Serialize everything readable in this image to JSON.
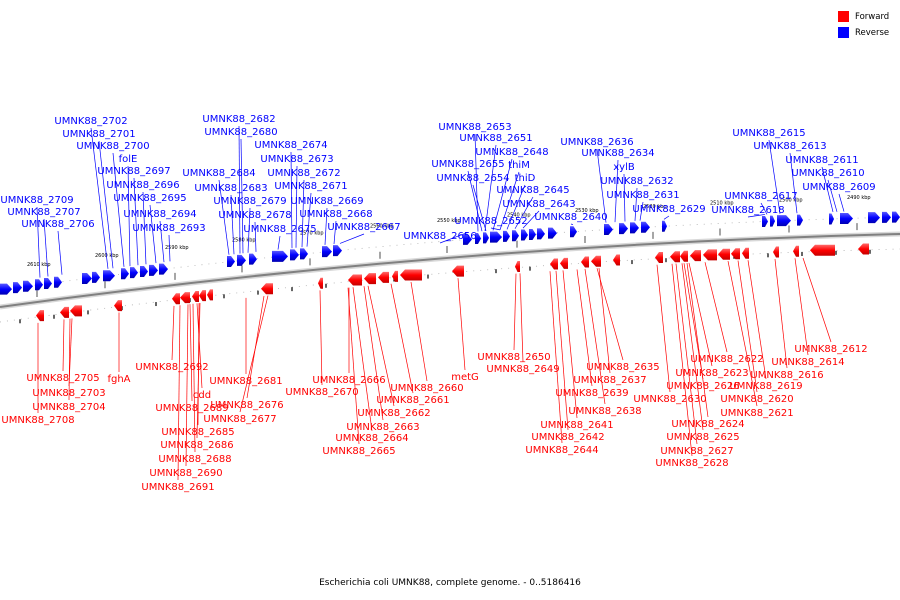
{
  "legend": {
    "forward_label": "Forward",
    "reverse_label": "Reverse",
    "forward_color": "#ff0000",
    "reverse_color": "#0000ff"
  },
  "caption": "Escherichia coli UMNK88, complete genome. - 0..5186416",
  "ticks": [
    "2610 kbp",
    "2600 kbp",
    "2590 kbp",
    "2580 kbp",
    "2570 kbp",
    "2560 kbp",
    "2550 kbp",
    "2540 kbp",
    "2530 kbp",
    "2520 kbp",
    "2510 kbp",
    "2500 kbp",
    "2490 kbp"
  ],
  "reverse_labels": [
    "UMNK88_2702",
    "UMNK88_2701",
    "UMNK88_2700",
    "folE",
    "UMNK88_2697",
    "UMNK88_2696",
    "UMNK88_2709",
    "UMNK88_2695",
    "UMNK88_2707",
    "UMNK88_2694",
    "UMNK88_2706",
    "UMNK88_2693",
    "UMNK88_2682",
    "UMNK88_2680",
    "UMNK88_2674",
    "UMNK88_2673",
    "UMNK88_2684",
    "UMNK88_2672",
    "UMNK88_2683",
    "UMNK88_2671",
    "UMNK88_2679",
    "UMNK88_2669",
    "UMNK88_2678",
    "UMNK88_2668",
    "UMNK88_2675",
    "UMNK88_2667",
    "UMNK88_2653",
    "UMNK88_2651",
    "UMNK88_2648",
    "UMNK88_2655",
    "thiM",
    "UMNK88_2654",
    "thiD",
    "UMNK88_2645",
    "UMNK88_2643",
    "UMNK88_2652",
    "UMNK88_2640",
    "UMNK88_2656",
    "UMNK88_2636",
    "UMNK88_2634",
    "xylB",
    "UMNK88_2632",
    "UMNK88_2631",
    "UMNK88_2629",
    "UMNK88_2615",
    "UMNK88_2613",
    "UMNK88_2611",
    "UMNK88_2610",
    "UMNK88_2609",
    "UMNK88_2617",
    "UMNK88_2618"
  ],
  "forward_labels": [
    "UMNK88_2705",
    "UMNK88_2703",
    "UMNK88_2704",
    "UMNK88_2708",
    "fghA",
    "UMNK88_2692",
    "cdd",
    "UMNK88_2689",
    "UMNK88_2685",
    "UMNK88_2686",
    "UMNK88_2688",
    "UMNK88_2690",
    "UMNK88_2691",
    "UMNK88_2681",
    "UMNK88_2676",
    "UMNK88_2677",
    "UMNK88_2666",
    "UMNK88_2670",
    "UMNK88_2661",
    "UMNK88_2660",
    "UMNK88_2662",
    "UMNK88_2663",
    "UMNK88_2664",
    "UMNK88_2665",
    "metG",
    "UMNK88_2650",
    "UMNK88_2649",
    "UMNK88_2635",
    "UMNK88_2637",
    "UMNK88_2639",
    "UMNK88_2638",
    "UMNK88_2641",
    "UMNK88_2642",
    "UMNK88_2644",
    "UMNK88_2622",
    "UMNK88_2623",
    "UMNK88_2626",
    "UMNK88_2630",
    "UMNK88_2624",
    "UMNK88_2625",
    "UMNK88_2627",
    "UMNK88_2628",
    "UMNK88_2619",
    "UMNK88_2620",
    "UMNK88_2621",
    "UMNK88_2612",
    "UMNK88_2614",
    "UMNK88_2616"
  ]
}
